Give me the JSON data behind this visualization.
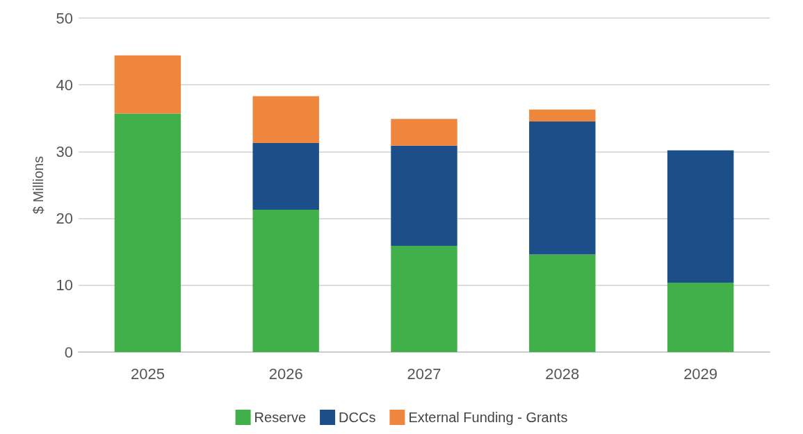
{
  "chart_data": {
    "type": "bar",
    "stacked": true,
    "ylabel": "$ Millions",
    "categories": [
      "2025",
      "2026",
      "2027",
      "2028",
      "2029"
    ],
    "series": [
      {
        "name": "Reserve",
        "color": "#41b04a",
        "values": [
          35.7,
          21.3,
          15.9,
          14.6,
          10.4
        ]
      },
      {
        "name": "DCCs",
        "color": "#1c4e8a",
        "values": [
          0,
          10.0,
          15.0,
          19.9,
          19.8
        ]
      },
      {
        "name": "External Funding - Grants",
        "color": "#ee873d",
        "values": [
          8.7,
          7.0,
          4.0,
          1.8,
          0
        ]
      }
    ],
    "ylim": [
      0,
      50
    ],
    "yticks": [
      0,
      10,
      20,
      30,
      40,
      50
    ],
    "grid": "y",
    "legend": "bottom"
  }
}
